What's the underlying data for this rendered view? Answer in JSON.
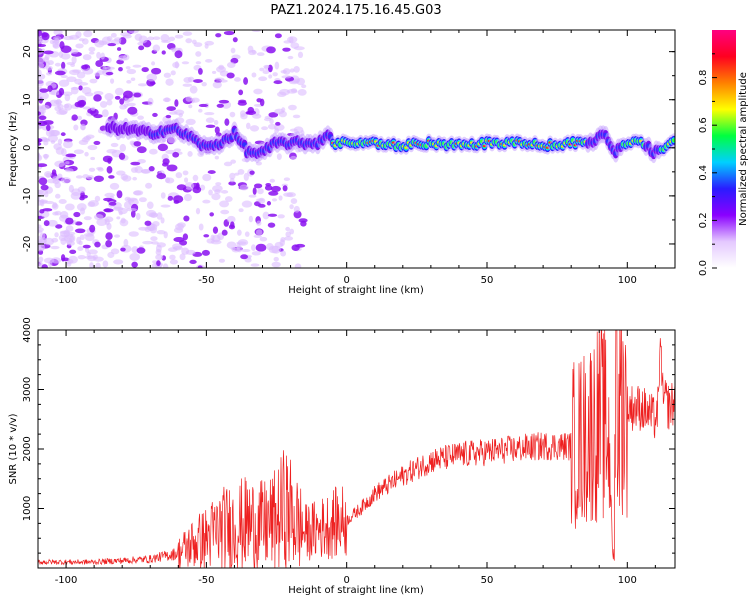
{
  "title": "PAZ1.2024.175.16.45.G03",
  "chart_data": [
    {
      "type": "heatmap",
      "xlabel": "Height of straight line (km)",
      "ylabel": "Frequency (Hz)",
      "xlim": [
        -110,
        117
      ],
      "ylim": [
        -25,
        24.5
      ],
      "xticks": [
        -100,
        -50,
        0,
        50,
        100
      ],
      "yticks": [
        -20,
        -10,
        0,
        10,
        20
      ],
      "colorbar": {
        "label": "Normalized spectral amplitude",
        "range": [
          0,
          1
        ],
        "ticks": [
          0.0,
          0.2,
          0.4,
          0.6,
          0.8
        ],
        "colors": [
          "#ffffff",
          "#e4c8ff",
          "#8a00ff",
          "#2a1cff",
          "#00d0ff",
          "#00ff40",
          "#ffff00",
          "#ff8000",
          "#ff0020",
          "#ff0080"
        ]
      },
      "ridge": {
        "x": [
          -80,
          -70,
          -62,
          -58,
          -55,
          -50,
          -45,
          -40,
          -35,
          -30,
          -25,
          -20,
          -15,
          -10,
          -7,
          -5,
          0,
          10,
          20,
          30,
          40,
          50,
          60,
          70,
          80,
          88,
          92,
          95,
          100,
          105,
          110,
          115
        ],
        "y": [
          4,
          3,
          4,
          3,
          2,
          0,
          1,
          3,
          -1,
          -1,
          1,
          1,
          1,
          1,
          3,
          1,
          1,
          1,
          0.5,
          1,
          0.5,
          1,
          1,
          0.5,
          1,
          1,
          3,
          -1,
          1,
          1,
          -1,
          1
        ]
      }
    },
    {
      "type": "line",
      "xlabel": "Height of straight line (km)",
      "ylabel": "SNR (10 * v/v)",
      "xlim": [
        -110,
        117
      ],
      "ylim": [
        0,
        4000
      ],
      "xticks": [
        -100,
        -50,
        0,
        50,
        100
      ],
      "yticks": [
        1000,
        2000,
        3000,
        4000
      ],
      "color": "#ee2020",
      "envelope": {
        "x": [
          -110,
          -90,
          -70,
          -60,
          -55,
          -50,
          -45,
          -40,
          -35,
          -30,
          -25,
          -22,
          -20,
          -15,
          -10,
          -5,
          0,
          5,
          10,
          20,
          30,
          40,
          50,
          60,
          70,
          80,
          85,
          88,
          90,
          93,
          95,
          97,
          100,
          105,
          110,
          112,
          115,
          117
        ],
        "y": [
          100,
          100,
          150,
          250,
          400,
          500,
          650,
          700,
          750,
          700,
          800,
          1000,
          900,
          600,
          650,
          750,
          800,
          1000,
          1250,
          1550,
          1800,
          1900,
          1950,
          2000,
          2050,
          2050,
          2200,
          2400,
          2500,
          2300,
          1000,
          2900,
          2700,
          2700,
          2500,
          2900,
          2700,
          2800
        ]
      }
    }
  ]
}
